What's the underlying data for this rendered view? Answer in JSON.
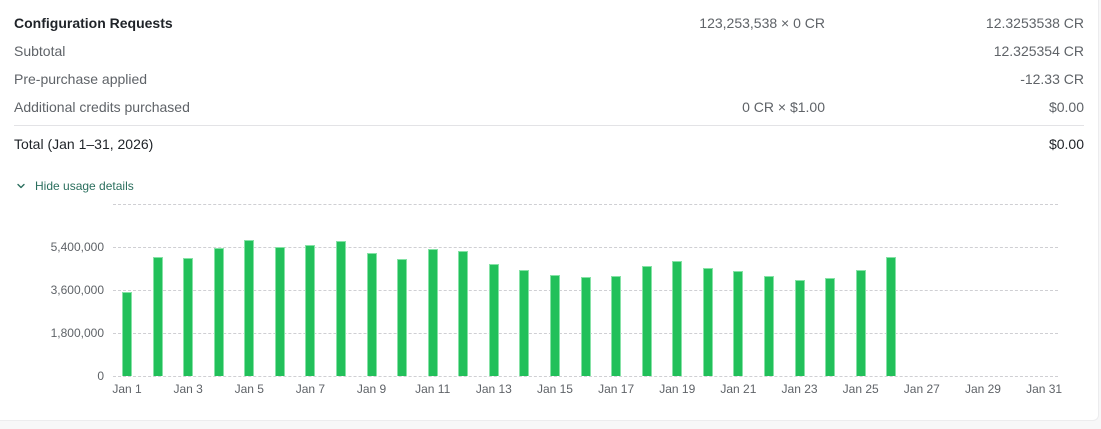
{
  "billing": {
    "line_item": {
      "label": "Configuration Requests",
      "calc": "123,253,538 × 0 CR",
      "amount": "12.3253538 CR"
    },
    "subtotal": {
      "label": "Subtotal",
      "amount": "12.325354 CR"
    },
    "prepurchase": {
      "label": "Pre-purchase applied",
      "amount": "-12.33 CR"
    },
    "additional": {
      "label": "Additional credits purchased",
      "calc": "0 CR × $1.00",
      "amount": "$0.00"
    },
    "total": {
      "label": "Total (Jan 1–31, 2026)",
      "amount": "$0.00"
    }
  },
  "usage_toggle": {
    "label": "Hide usage details",
    "icon": "chevron-down-icon"
  },
  "colors": {
    "bar": "#22c05a",
    "bar_border": "#86e2a6",
    "link": "#2b6f5e",
    "grid": "#cfcfd3"
  },
  "chart_data": {
    "type": "bar",
    "title": "",
    "xlabel": "",
    "ylabel": "",
    "ylim": [
      0,
      7200000
    ],
    "grid": true,
    "legend": null,
    "y_ticks": [
      0,
      1800000,
      3600000,
      5400000
    ],
    "y_tick_labels": [
      "0",
      "1,800,000",
      "3,600,000",
      "5,400,000"
    ],
    "x_tick_labels": [
      "Jan 1",
      "Jan 3",
      "Jan 5",
      "Jan 7",
      "Jan 9",
      "Jan 11",
      "Jan 13",
      "Jan 15",
      "Jan 17",
      "Jan 19",
      "Jan 21",
      "Jan 23",
      "Jan 25",
      "Jan 27",
      "Jan 29",
      "Jan 31"
    ],
    "categories": [
      "Jan 1",
      "Jan 2",
      "Jan 3",
      "Jan 4",
      "Jan 5",
      "Jan 6",
      "Jan 7",
      "Jan 8",
      "Jan 9",
      "Jan 10",
      "Jan 11",
      "Jan 12",
      "Jan 13",
      "Jan 14",
      "Jan 15",
      "Jan 16",
      "Jan 17",
      "Jan 18",
      "Jan 19",
      "Jan 20",
      "Jan 21",
      "Jan 22",
      "Jan 23",
      "Jan 24",
      "Jan 25",
      "Jan 26",
      "Jan 27",
      "Jan 28",
      "Jan 29",
      "Jan 30",
      "Jan 31"
    ],
    "values": [
      3520000,
      4980000,
      4940000,
      5360000,
      5690000,
      5380000,
      5480000,
      5630000,
      5150000,
      4900000,
      5300000,
      5210000,
      4690000,
      4440000,
      4230000,
      4140000,
      4190000,
      4600000,
      4810000,
      4520000,
      4400000,
      4190000,
      4020000,
      4100000,
      4440000,
      4980000,
      0,
      0,
      0,
      0,
      0
    ]
  }
}
